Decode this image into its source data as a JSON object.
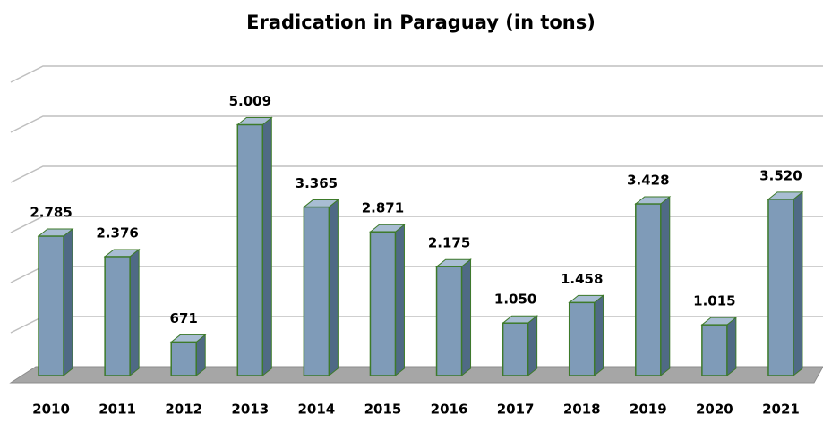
{
  "chart_data": {
    "type": "bar3d",
    "title": "Eradication in Paraguay (in tons)",
    "categories": [
      "2010",
      "2011",
      "2012",
      "2013",
      "2014",
      "2015",
      "2016",
      "2017",
      "2018",
      "2019",
      "2020",
      "2021"
    ],
    "values": [
      2785,
      2376,
      671,
      5009,
      3365,
      2871,
      2175,
      1050,
      1458,
      3428,
      1015,
      3520
    ],
    "value_labels": [
      "2.785",
      "2.376",
      "671",
      "5.009",
      "3.365",
      "2.871",
      "2.175",
      "1.050",
      "1.458",
      "3.428",
      "1.015",
      "3.520"
    ],
    "color": "#7f9bb8",
    "ylim": [
      0,
      6000
    ],
    "yticks": [
      0,
      1000,
      2000,
      3000,
      4000,
      5000,
      6000
    ],
    "grid": true
  }
}
